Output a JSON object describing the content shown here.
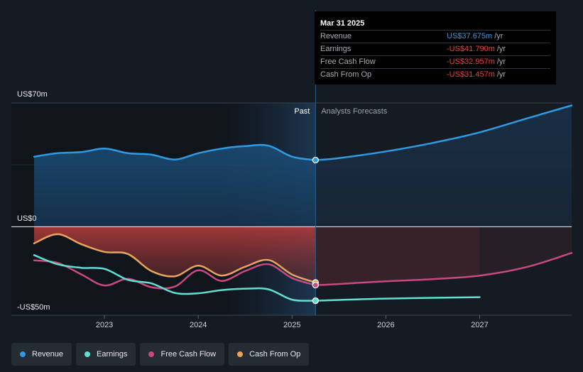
{
  "tooltip": {
    "date": "Mar 31 2025",
    "rows": [
      {
        "label": "Revenue",
        "value": "US$37.675m",
        "unit": "/yr",
        "color": "#2e9be3"
      },
      {
        "label": "Earnings",
        "value": "-US$41.790m",
        "unit": "/yr",
        "color": "#e8413e"
      },
      {
        "label": "Free Cash Flow",
        "value": "-US$32.957m",
        "unit": "/yr",
        "color": "#e8413e"
      },
      {
        "label": "Cash From Op",
        "value": "-US$31.457m",
        "unit": "/yr",
        "color": "#e8413e"
      }
    ]
  },
  "legend": [
    {
      "label": "Revenue",
      "color": "#2e9be3"
    },
    {
      "label": "Earnings",
      "color": "#5fe0d2"
    },
    {
      "label": "Free Cash Flow",
      "color": "#c8487f"
    },
    {
      "label": "Cash From Op",
      "color": "#e9a45c"
    }
  ],
  "chart_data": {
    "type": "line",
    "y_labels": [
      "US$70m",
      "US$0",
      "-US$50m"
    ],
    "x_ticks": [
      {
        "label": "2023",
        "x": 2023.0
      },
      {
        "label": "2024",
        "x": 2024.0
      },
      {
        "label": "2025",
        "x": 2025.0
      },
      {
        "label": "2026",
        "x": 2026.0
      },
      {
        "label": "2027",
        "x": 2027.0
      }
    ],
    "ylim": [
      -50,
      70
    ],
    "xlim": [
      2022.25,
      2027.98
    ],
    "divider_x": 2025.25,
    "past_label": "Past",
    "forecast_label": "Analysts Forecasts",
    "grid": true,
    "series": [
      {
        "name": "Revenue",
        "color": "#2e9be3",
        "fill": true,
        "values": [
          [
            2022.25,
            39.6
          ],
          [
            2022.5,
            41.6
          ],
          [
            2022.75,
            42.2
          ],
          [
            2023.0,
            44.2
          ],
          [
            2023.25,
            41.6
          ],
          [
            2023.5,
            40.8
          ],
          [
            2023.75,
            38.0
          ],
          [
            2024.0,
            41.6
          ],
          [
            2024.25,
            44.2
          ],
          [
            2024.5,
            45.6
          ],
          [
            2024.75,
            45.8
          ],
          [
            2025.0,
            39.6
          ],
          [
            2025.25,
            37.7
          ]
        ]
      },
      {
        "name": "Revenue forecast",
        "color": "#2e9be3",
        "fill": true,
        "values": [
          [
            2025.25,
            37.7
          ],
          [
            2025.5,
            38.8
          ],
          [
            2026.0,
            42.6
          ],
          [
            2026.5,
            47.4
          ],
          [
            2027.0,
            53.4
          ],
          [
            2027.5,
            61.2
          ],
          [
            2027.98,
            68.6
          ]
        ]
      },
      {
        "name": "Cash From Op",
        "color": "#e9a45c",
        "fill": true,
        "values": [
          [
            2022.25,
            -9.4
          ],
          [
            2022.5,
            -4.2
          ],
          [
            2022.75,
            -9.8
          ],
          [
            2023.0,
            -14.2
          ],
          [
            2023.25,
            -15.4
          ],
          [
            2023.5,
            -25.0
          ],
          [
            2023.75,
            -28.0
          ],
          [
            2024.0,
            -22.0
          ],
          [
            2024.25,
            -27.6
          ],
          [
            2024.5,
            -22.6
          ],
          [
            2024.75,
            -18.8
          ],
          [
            2025.0,
            -27.0
          ],
          [
            2025.25,
            -31.5
          ]
        ]
      },
      {
        "name": "Free Cash Flow",
        "color": "#c8487f",
        "fill": false,
        "values": [
          [
            2022.25,
            -19.0
          ],
          [
            2022.5,
            -20.4
          ],
          [
            2022.75,
            -26.8
          ],
          [
            2023.0,
            -33.2
          ],
          [
            2023.25,
            -29.4
          ],
          [
            2023.5,
            -34.2
          ],
          [
            2023.75,
            -33.8
          ],
          [
            2024.0,
            -24.6
          ],
          [
            2024.25,
            -30.6
          ],
          [
            2024.5,
            -25.0
          ],
          [
            2024.75,
            -21.2
          ],
          [
            2025.0,
            -29.0
          ],
          [
            2025.25,
            -33.0
          ]
        ]
      },
      {
        "name": "Free Cash Flow forecast",
        "color": "#c8487f",
        "fill": false,
        "values": [
          [
            2025.25,
            -33.0
          ],
          [
            2025.5,
            -32.4
          ],
          [
            2026.0,
            -30.8
          ],
          [
            2026.5,
            -29.6
          ],
          [
            2027.0,
            -27.6
          ],
          [
            2027.5,
            -22.8
          ],
          [
            2027.98,
            -14.8
          ]
        ]
      },
      {
        "name": "Earnings",
        "color": "#5fe0d2",
        "fill": false,
        "values": [
          [
            2022.25,
            -16.0
          ],
          [
            2022.5,
            -21.2
          ],
          [
            2022.75,
            -23.2
          ],
          [
            2023.0,
            -23.8
          ],
          [
            2023.25,
            -30.0
          ],
          [
            2023.5,
            -32.0
          ],
          [
            2023.75,
            -37.4
          ],
          [
            2024.0,
            -37.6
          ],
          [
            2024.25,
            -35.8
          ],
          [
            2024.5,
            -35.0
          ],
          [
            2024.75,
            -35.4
          ],
          [
            2025.0,
            -41.2
          ],
          [
            2025.25,
            -41.8
          ]
        ]
      },
      {
        "name": "Earnings forecast",
        "color": "#5fe0d2",
        "fill": false,
        "values": [
          [
            2025.25,
            -41.8
          ],
          [
            2026.0,
            -40.6
          ],
          [
            2027.0,
            -39.8
          ]
        ]
      }
    ],
    "highlight_points": [
      {
        "series": "Revenue",
        "x": 2025.25,
        "y": 37.7
      },
      {
        "series": "Cash From Op",
        "x": 2025.25,
        "y": -31.5
      },
      {
        "series": "Free Cash Flow",
        "x": 2025.25,
        "y": -33.0
      },
      {
        "series": "Earnings",
        "x": 2025.25,
        "y": -41.8
      }
    ]
  }
}
